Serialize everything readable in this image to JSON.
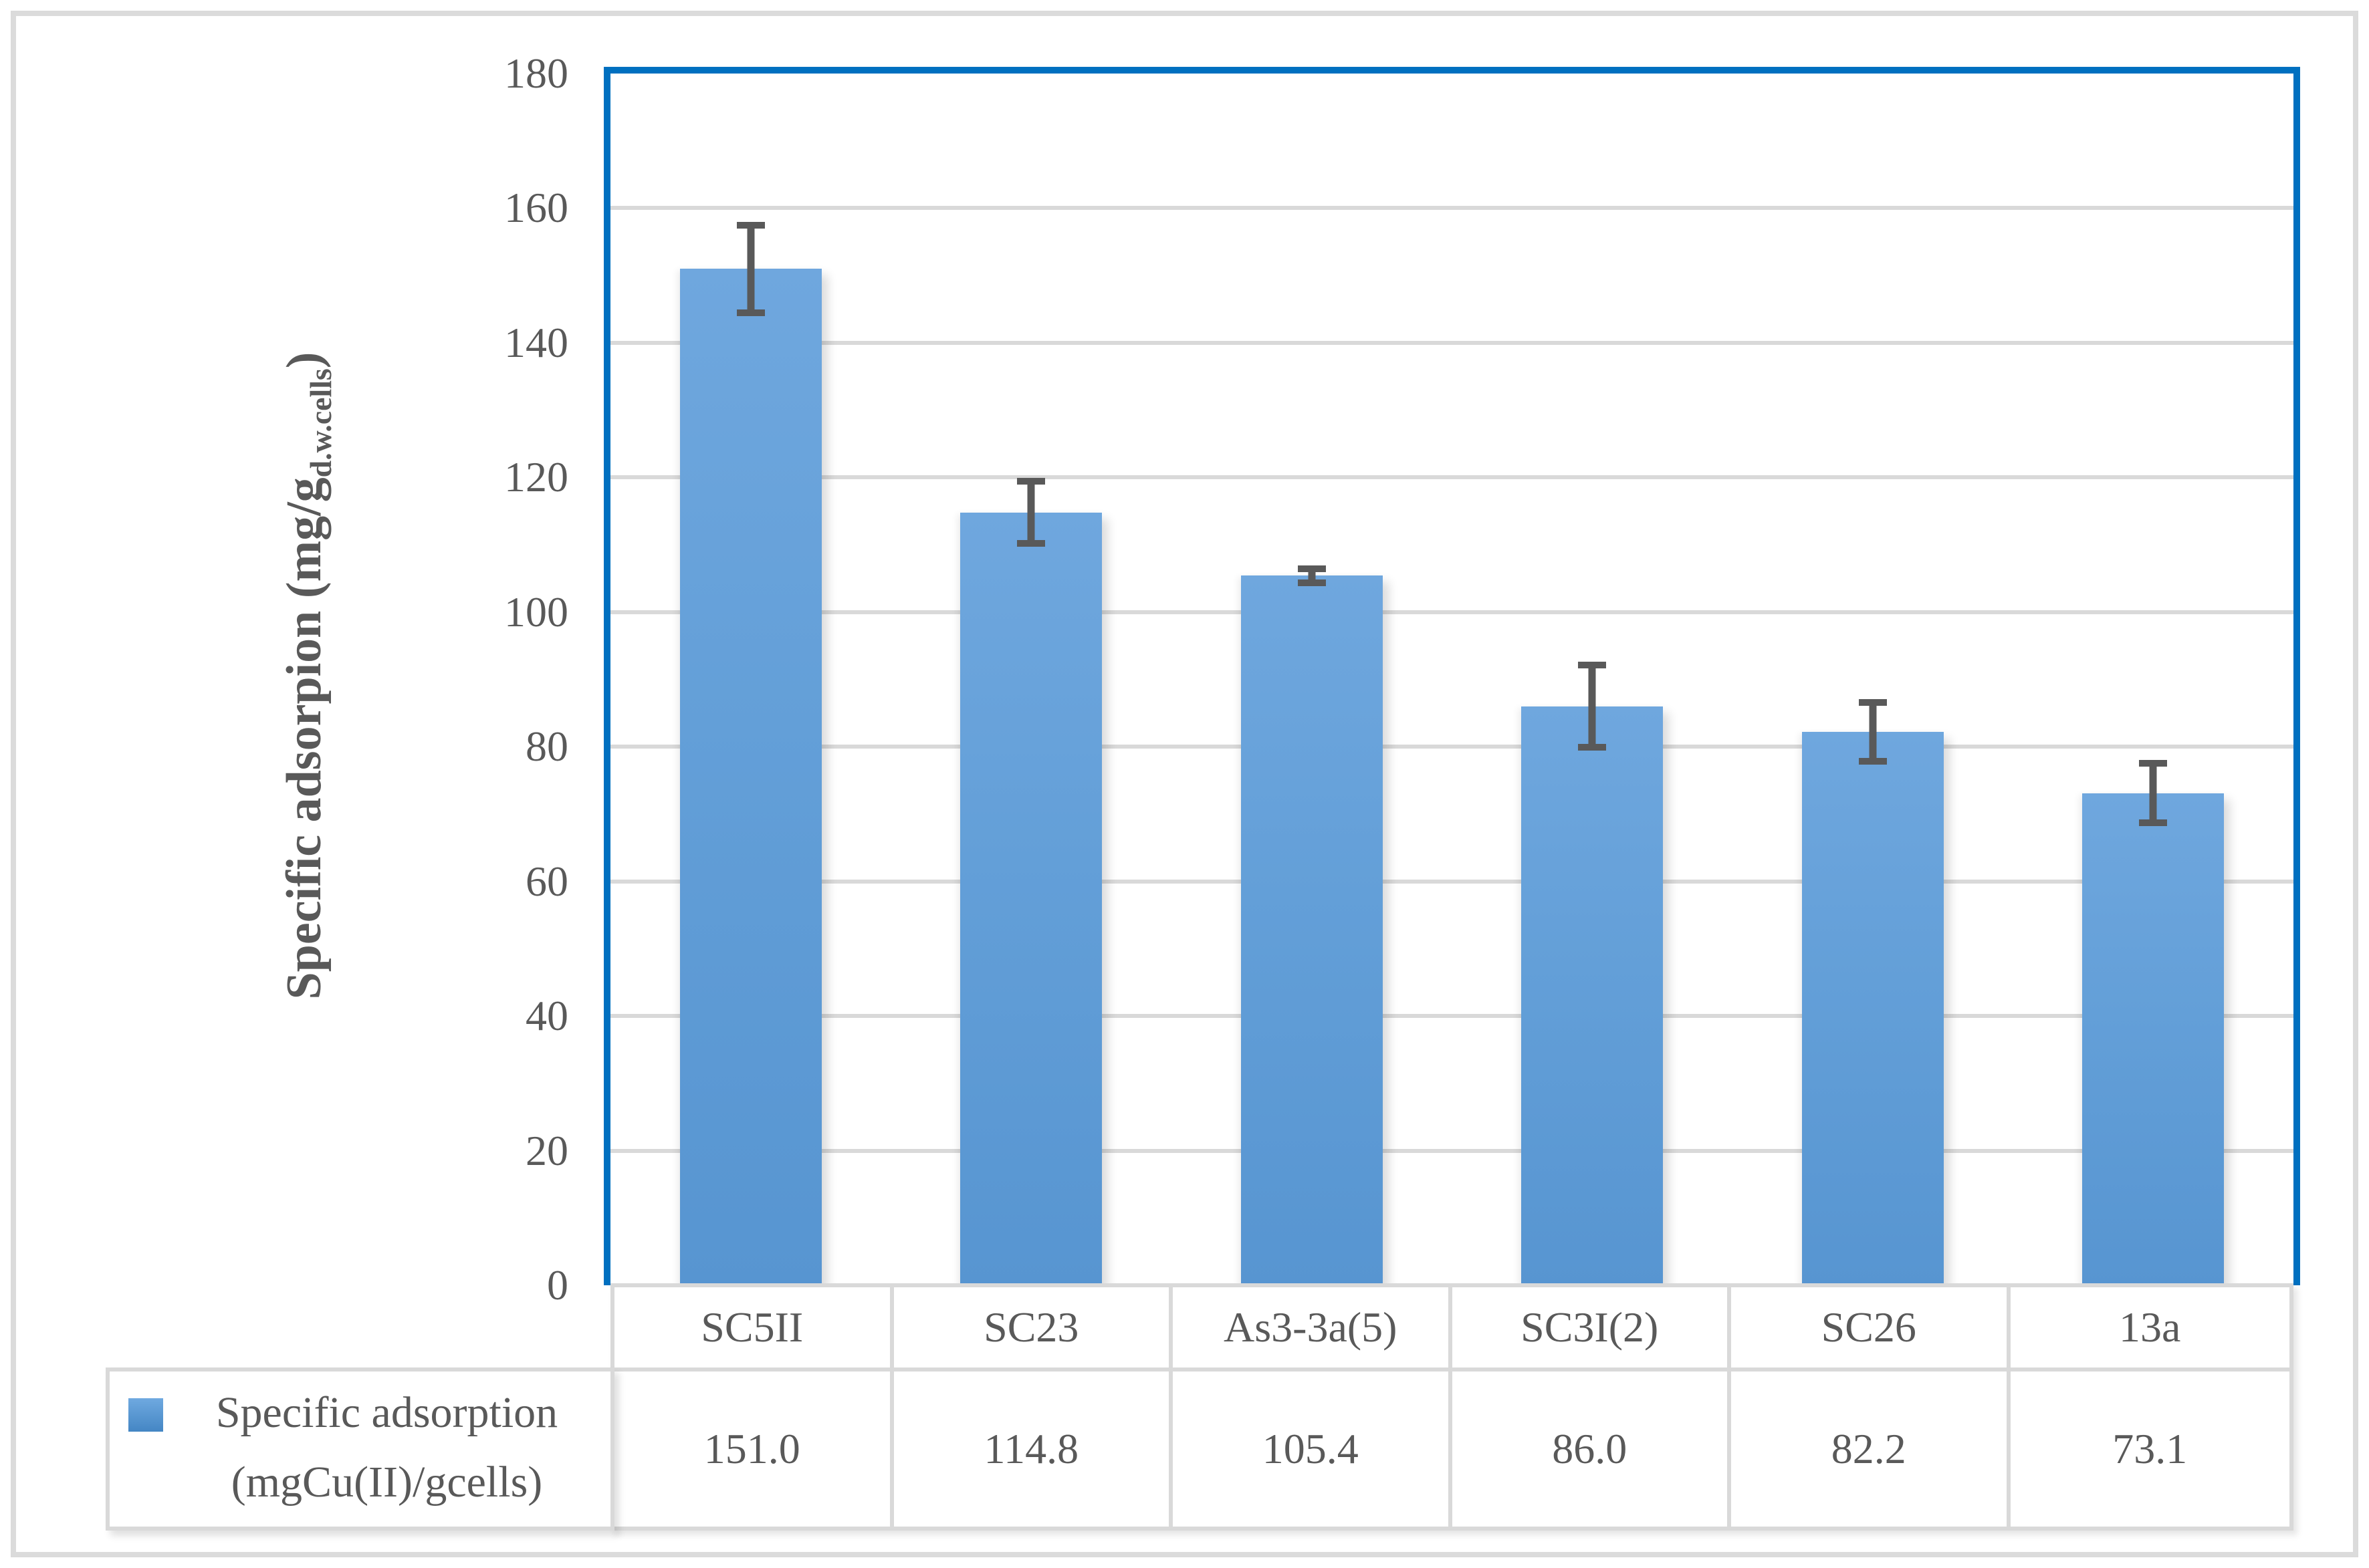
{
  "chart_data": {
    "type": "bar",
    "categories": [
      "SC5II",
      "SC23",
      "As3-3a(5)",
      "SC3I(2)",
      "SC26",
      "13a"
    ],
    "values": [
      151.0,
      114.8,
      105.4,
      86.0,
      82.2,
      73.1
    ],
    "value_labels": [
      "151.0",
      "114.8",
      "105.4",
      "86.0",
      "82.2",
      "73.1"
    ],
    "error_bars": [
      7.0,
      5.1,
      1.5,
      6.6,
      4.9,
      4.9
    ],
    "title": "",
    "xlabel": "",
    "ylabel_prefix": "Specific adsorpion (mg/g",
    "ylabel_sub": "d.w.cells",
    "ylabel_suffix": ")",
    "ylim": [
      0,
      180
    ],
    "ytick_step": 20,
    "grid": true,
    "legend_position": "bottom-left-table-cell",
    "series": [
      {
        "name": "Specific adsorption (mgCu(II)/gcells)",
        "values": [
          151.0,
          114.8,
          105.4,
          86.0,
          82.2,
          73.1
        ]
      }
    ],
    "legend": {
      "line1": "Specific adsorption",
      "line2": "(mgCu(II)/gcells)"
    }
  },
  "colors": {
    "bar_fill_top": "#6FA7DE",
    "bar_fill_bottom": "#5795D1",
    "plot_border": "#0070C0",
    "gridline": "#D9D9D9",
    "error_bar": "#595959",
    "text": "#595959",
    "table_border": "#D9D9D9",
    "outer_border": "#DBDBDB",
    "legend_marker_top": "#6FA9E0",
    "legend_marker_bottom": "#4486C4"
  }
}
